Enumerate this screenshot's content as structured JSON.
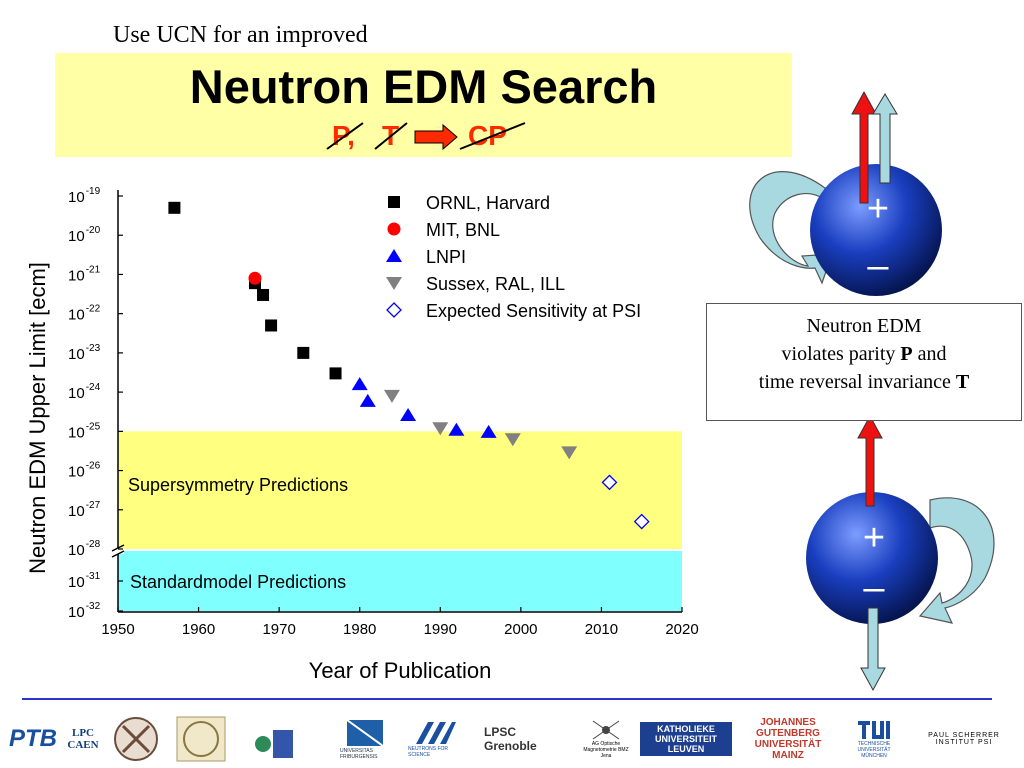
{
  "slide": {
    "subtitle": "Use UCN for an improved",
    "title": "Neutron EDM Search",
    "symmetry": {
      "p": "P,",
      "t": "T",
      "cp": "CP"
    },
    "info_lines": [
      "Neutron EDM",
      "violates parity",
      "P",
      "and",
      "time reversal invariance",
      "T"
    ],
    "dipole_plus": "+",
    "dipole_minus": "–"
  },
  "colors": {
    "title_bg": "#ffffa6",
    "susy_band": "#ffff80",
    "sm_band": "#80ffff",
    "neutron_blue": "#1a3fc0",
    "red_arrow": "#ee1111",
    "light_arrow": "#a8d8e0",
    "ornl": "#000000",
    "mit": "#ff0000",
    "lnpi": "#0000ff",
    "sussex": "#808080",
    "divider": "#2a34c8"
  },
  "chart_data": {
    "type": "scatter",
    "xlabel": "Year of Publication",
    "ylabel": "Neutron EDM Upper Limit [ecm]",
    "xlim": [
      1950,
      2020
    ],
    "xticks": [
      "1950",
      "1960",
      "1970",
      "1980",
      "1990",
      "2000",
      "2010",
      "2020"
    ],
    "yticks_upper": [
      {
        "base": "10",
        "exp": "-19",
        "value": 1e-19
      },
      {
        "base": "10",
        "exp": "-20",
        "value": 1e-20
      },
      {
        "base": "10",
        "exp": "-21",
        "value": 1e-21
      },
      {
        "base": "10",
        "exp": "-22",
        "value": 1e-22
      },
      {
        "base": "10",
        "exp": "-23",
        "value": 1e-23
      },
      {
        "base": "10",
        "exp": "-24",
        "value": 1e-24
      },
      {
        "base": "10",
        "exp": "-25",
        "value": 1e-25
      },
      {
        "base": "10",
        "exp": "-26",
        "value": 1e-26
      },
      {
        "base": "10",
        "exp": "-27",
        "value": 1e-27
      },
      {
        "base": "10",
        "exp": "-28",
        "value": 1e-28
      }
    ],
    "yticks_lower": [
      {
        "base": "10",
        "exp": "-31",
        "value": 1e-31
      },
      {
        "base": "10",
        "exp": "-32",
        "value": 1e-32
      }
    ],
    "y_scale": "log, broken between 1e-28 and 1e-31",
    "bands": [
      {
        "label": "Supersymmetry Predictions",
        "from": 1e-28,
        "to": 1e-25
      },
      {
        "label": "Standardmodel Predictions",
        "from": 1e-32,
        "to": 1e-30
      }
    ],
    "legend_position": "top-right",
    "series": [
      {
        "name": "ORNL, Harvard",
        "marker": "square",
        "points": [
          [
            1957,
            5e-20
          ],
          [
            1967,
            6e-22
          ],
          [
            1968,
            3e-22
          ],
          [
            1969,
            5e-23
          ],
          [
            1973,
            1e-23
          ],
          [
            1977,
            3e-24
          ]
        ]
      },
      {
        "name": "MIT, BNL",
        "marker": "circle",
        "points": [
          [
            1967,
            8e-22
          ]
        ]
      },
      {
        "name": "LNPI",
        "marker": "triangle-up",
        "points": [
          [
            1980,
            1.6e-24
          ],
          [
            1981,
            6e-25
          ],
          [
            1986,
            2.6e-25
          ],
          [
            1992,
            1.1e-25
          ],
          [
            1996,
            9.7e-26
          ]
        ]
      },
      {
        "name": "Sussex, RAL, ILL",
        "marker": "triangle-down",
        "points": [
          [
            1984,
            8e-25
          ],
          [
            1990,
            1.2e-25
          ],
          [
            1999,
            6.3e-26
          ],
          [
            2006,
            2.9e-26
          ]
        ]
      },
      {
        "name": "Expected Sensitivity at PSI",
        "marker": "diamond-open",
        "points": [
          [
            2011,
            5e-27
          ],
          [
            2015,
            5e-28
          ]
        ]
      }
    ]
  },
  "logos": [
    {
      "name": "ptb",
      "text": "PTB"
    },
    {
      "name": "lpc",
      "text": "LPC CAEN"
    },
    {
      "name": "seal-1",
      "text": ""
    },
    {
      "name": "seal-2",
      "text": ""
    },
    {
      "name": "tum-mu",
      "text": ""
    },
    {
      "name": "univ",
      "text": "UNIVERSITAS FRIBURGENSIS"
    },
    {
      "name": "ill",
      "text": "NEUTRONS FOR SCIENCE"
    },
    {
      "name": "lpsc",
      "text": "LPSC Grenoble"
    },
    {
      "name": "jena",
      "text": "AG Optische Magnetometrie BMZ Jena"
    },
    {
      "name": "leuven",
      "text": "KATHOLIEKE UNIVERSITEIT LEUVEN"
    },
    {
      "name": "mainz",
      "text": "JOHANNES GUTENBERG UNIVERSITÄT MAINZ"
    },
    {
      "name": "tum",
      "text": "TECHNISCHE UNIVERSITÄT MÜNCHEN"
    },
    {
      "name": "psi",
      "text": "PAUL SCHERRER INSTITUT PSI"
    }
  ]
}
